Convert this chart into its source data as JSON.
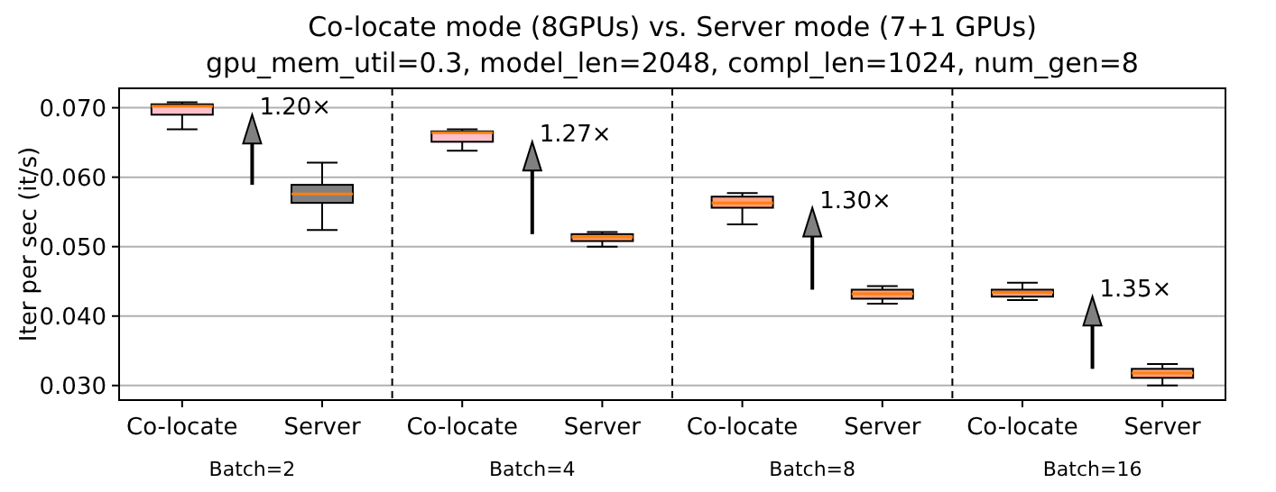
{
  "chart_data": {
    "type": "box",
    "title": "Co-locate mode (8GPUs) vs. Server mode (7+1 GPUs)",
    "subtitle": "gpu_mem_util=0.3, model_len=2048, compl_len=1024, num_gen=8",
    "ylabel": "Iter per sec (it/s)",
    "categories": [
      "Co-locate",
      "Server",
      "Co-locate",
      "Server",
      "Co-locate",
      "Server",
      "Co-locate",
      "Server"
    ],
    "boxes": [
      {
        "low": 0.0669,
        "q1": 0.069,
        "median": 0.0702,
        "q3": 0.0705,
        "high": 0.0708
      },
      {
        "low": 0.0524,
        "q1": 0.0563,
        "median": 0.0576,
        "q3": 0.0589,
        "high": 0.0621
      },
      {
        "low": 0.0638,
        "q1": 0.0651,
        "median": 0.0664,
        "q3": 0.0666,
        "high": 0.0669
      },
      {
        "low": 0.05,
        "q1": 0.0508,
        "median": 0.0514,
        "q3": 0.0518,
        "high": 0.0521
      },
      {
        "low": 0.0532,
        "q1": 0.0556,
        "median": 0.0563,
        "q3": 0.0572,
        "high": 0.0577
      },
      {
        "low": 0.0418,
        "q1": 0.0425,
        "median": 0.0432,
        "q3": 0.0438,
        "high": 0.0443
      },
      {
        "low": 0.0423,
        "q1": 0.0428,
        "median": 0.0434,
        "q3": 0.0438,
        "high": 0.0448
      },
      {
        "low": 0.03,
        "q1": 0.0311,
        "median": 0.0318,
        "q3": 0.0324,
        "high": 0.0331
      }
    ],
    "colors": [
      "#ffc0cb",
      "#808080",
      "#ffc0cb",
      "#ffa07a",
      "#ffa07a",
      "#ffa07a",
      "#ffa07a",
      "#ffa07a"
    ],
    "ylim": [
      0.0279,
      0.0728
    ],
    "yticks": [
      {
        "value": 0.03,
        "label": "0.030"
      },
      {
        "value": 0.04,
        "label": "0.040"
      },
      {
        "value": 0.05,
        "label": "0.050"
      },
      {
        "value": 0.06,
        "label": "0.060"
      },
      {
        "value": 0.07,
        "label": "0.070"
      }
    ],
    "grid": "y",
    "annotations": [
      "Batch=2",
      "Batch=4",
      "Batch=8",
      "Batch=16",
      "1.20×",
      "1.27×",
      "1.30×",
      "1.35×"
    ]
  }
}
